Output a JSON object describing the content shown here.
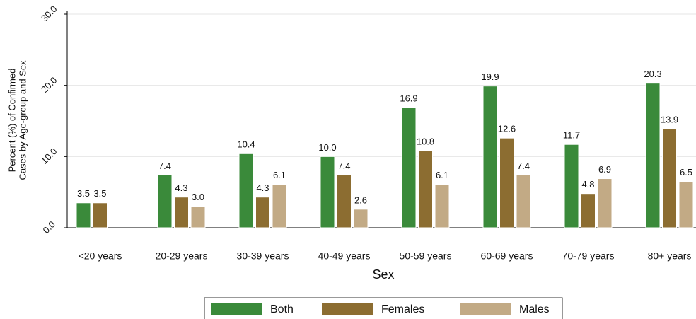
{
  "chart_data": {
    "type": "bar",
    "xlabel": "Sex",
    "ylabel": [
      "Percent (%) of Confirmed",
      "Cases by Age-group and Sex"
    ],
    "categories": [
      "<20 years",
      "20-29 years",
      "30-39 years",
      "40-49 years",
      "50-59 years",
      "60-69 years",
      "70-79 years",
      "80+ years"
    ],
    "series": [
      {
        "name": "Both",
        "color": "#3a8a3a",
        "values": [
          3.5,
          7.4,
          10.4,
          10.0,
          16.9,
          19.9,
          11.7,
          20.3
        ],
        "value_labels": [
          "3.5",
          "7.4",
          "10.4",
          "10.0",
          "16.9",
          "19.9",
          "11.7",
          "20.3"
        ]
      },
      {
        "name": "Females",
        "color": "#8c6d31",
        "values": [
          3.5,
          4.3,
          4.3,
          7.4,
          10.8,
          12.6,
          4.8,
          13.9
        ],
        "value_labels": [
          "3.5",
          "4.3",
          "4.3",
          "7.4",
          "10.8",
          "12.6",
          "4.8",
          "13.9"
        ]
      },
      {
        "name": "Males",
        "color": "#c2aa85",
        "values": [
          null,
          3.0,
          6.1,
          2.6,
          6.1,
          7.4,
          6.9,
          6.5
        ],
        "value_labels": [
          null,
          "3.0",
          "6.1",
          "2.6",
          "6.1",
          "7.4",
          "6.9",
          "6.5"
        ]
      }
    ],
    "ylim": [
      0,
      30
    ],
    "yticks": [
      {
        "value": 0,
        "label": "0.0"
      },
      {
        "value": 10,
        "label": "10.0"
      },
      {
        "value": 20,
        "label": "20.0"
      },
      {
        "value": 30,
        "label": "30.0"
      }
    ],
    "grid": true
  }
}
